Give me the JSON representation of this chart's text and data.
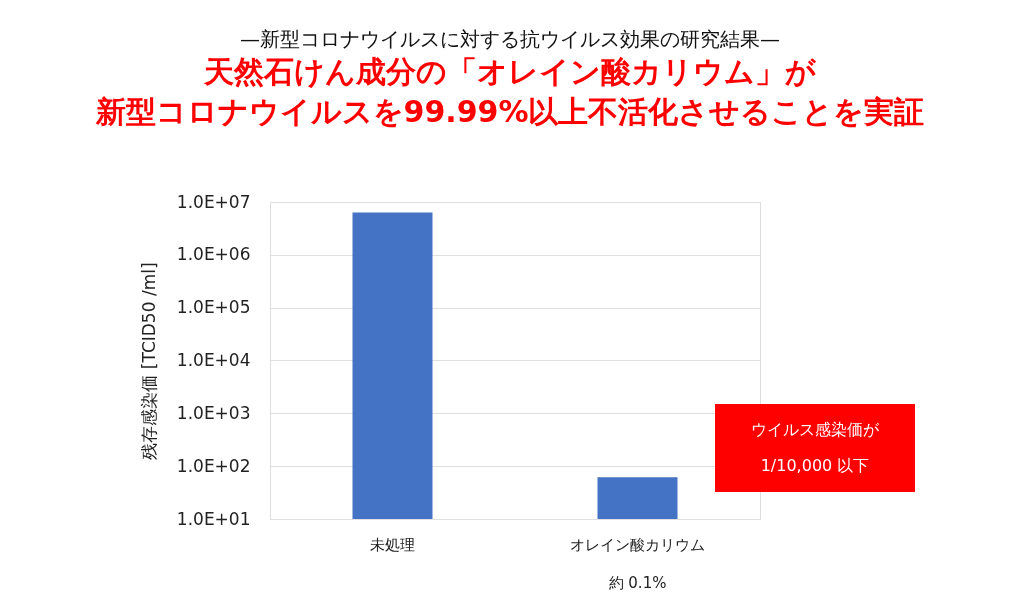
{
  "chart_data": {
    "type": "bar",
    "title": "—新型コロナウイルスに対する抗ウイルス効果の研究結果—",
    "subtitle": [
      "天然石けん成分の「オレイン酸カリウム」が",
      "新型コロナウイルスを99.99%以上不活化させることを実証"
    ],
    "ylabel": "残存感染価 [TCID50 /ml]",
    "categories": [
      "未処理",
      "オレイン酸カリウム"
    ],
    "values": [
      6300000,
      62
    ],
    "color": "#4472c4",
    "log": true,
    "ylim": [
      10,
      10000000
    ],
    "yticks": [
      {
        "value": 10,
        "label": "1.0E+01"
      },
      {
        "value": 100,
        "label": "1.0E+02"
      },
      {
        "value": 1000,
        "label": "1.0E+03"
      },
      {
        "value": 10000,
        "label": "1.0E+04"
      },
      {
        "value": 100000,
        "label": "1.0E+05"
      },
      {
        "value": 1000000,
        "label": "1.0E+06"
      },
      {
        "value": 10000000,
        "label": "1.0E+07"
      }
    ],
    "grid": "y",
    "annotations": [
      "ウイルス感染価が\n1/10,000 以下",
      "約 0.1%"
    ]
  }
}
